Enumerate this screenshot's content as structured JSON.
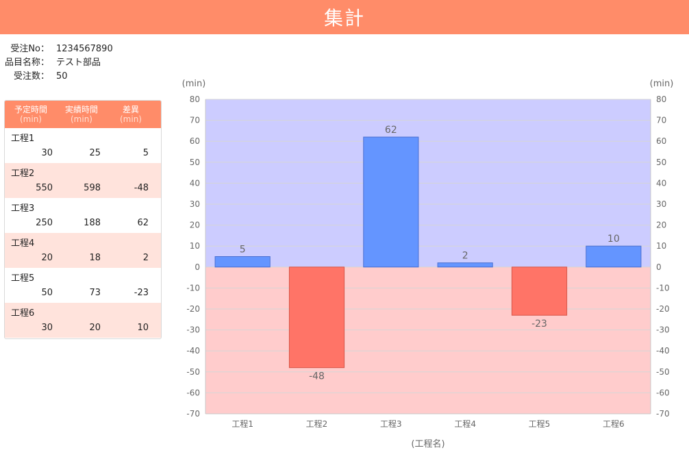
{
  "header": {
    "title": "集計"
  },
  "info": [
    {
      "label": "受注No：",
      "value": "1234567890"
    },
    {
      "label": "品目名称：",
      "value": "テスト部品"
    },
    {
      "label": "受注数：",
      "value": "50"
    }
  ],
  "table": {
    "headers": [
      {
        "name": "予定時間",
        "unit": "(min)"
      },
      {
        "name": "実績時間",
        "unit": "(min)"
      },
      {
        "name": "差異",
        "unit": "(min)"
      }
    ],
    "rows": [
      {
        "name": "工程1",
        "planned": "30",
        "actual": "25",
        "diff": "5"
      },
      {
        "name": "工程2",
        "planned": "550",
        "actual": "598",
        "diff": "-48"
      },
      {
        "name": "工程3",
        "planned": "250",
        "actual": "188",
        "diff": "62"
      },
      {
        "name": "工程4",
        "planned": "20",
        "actual": "18",
        "diff": "2"
      },
      {
        "name": "工程5",
        "planned": "50",
        "actual": "73",
        "diff": "-23"
      },
      {
        "name": "工程6",
        "planned": "30",
        "actual": "20",
        "diff": "10"
      }
    ]
  },
  "chart_data": {
    "type": "bar",
    "categories": [
      "工程1",
      "工程2",
      "工程3",
      "工程4",
      "工程5",
      "工程6"
    ],
    "values": [
      5,
      -48,
      62,
      2,
      -23,
      10
    ],
    "data_labels": [
      "5",
      "-48",
      "62",
      "2",
      "-23",
      "10"
    ],
    "ylabel_left": "(min)",
    "ylabel_right": "(min)",
    "xlabel": "(工程名)",
    "ylim": [
      -70,
      80
    ],
    "yticks": [
      80,
      70,
      60,
      50,
      40,
      30,
      20,
      10,
      0,
      -10,
      -20,
      -30,
      -40,
      -50,
      -60,
      -70
    ],
    "grid": true,
    "colors": {
      "positive_bar": "#6495ff",
      "negative_bar": "#ff7467",
      "positive_bg": "#ccccff",
      "negative_bg": "#ffcccc"
    }
  }
}
